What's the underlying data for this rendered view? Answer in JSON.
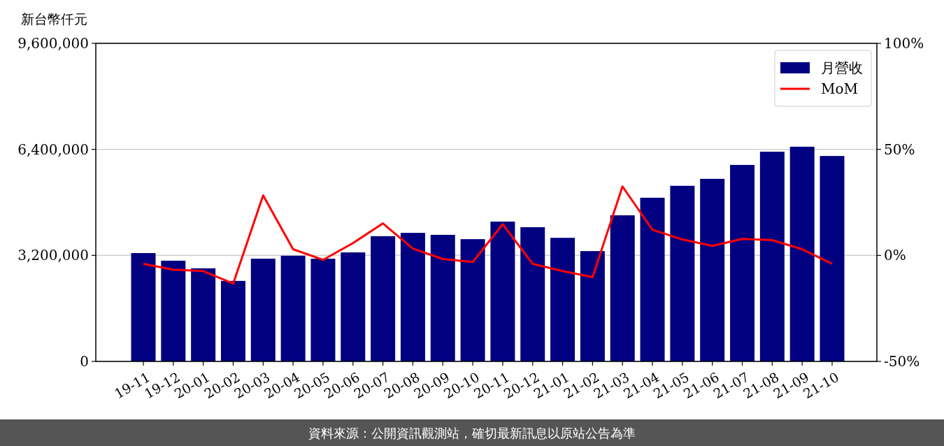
{
  "chart_data": {
    "type": "bar",
    "ylabel": "新台幣仟元",
    "categories": [
      "19-11",
      "19-12",
      "20-01",
      "20-02",
      "20-03",
      "20-04",
      "20-05",
      "20-06",
      "20-07",
      "20-08",
      "20-09",
      "20-10",
      "20-11",
      "20-12",
      "21-01",
      "21-02",
      "21-03",
      "21-04",
      "21-05",
      "21-06",
      "21-07",
      "21-08",
      "21-09",
      "21-10"
    ],
    "series": [
      {
        "name": "月營收",
        "color": "#000080",
        "values": [
          3270000,
          3040000,
          2810000,
          2430000,
          3100000,
          3190000,
          3100000,
          3290000,
          3780000,
          3880000,
          3820000,
          3690000,
          4220000,
          4050000,
          3730000,
          3330000,
          4410000,
          4940000,
          5300000,
          5510000,
          5930000,
          6330000,
          6480000,
          6200000
        ]
      },
      {
        "name": "MoM",
        "type": "line",
        "axis": "y2",
        "color": "#ff0000",
        "values": [
          -4,
          -6.7,
          -7.4,
          -13.3,
          28.3,
          2.9,
          -2.1,
          5.8,
          15.1,
          3.2,
          -1.7,
          -3.1,
          14.7,
          -4,
          -7.4,
          -10.3,
          32.5,
          12.1,
          7.5,
          4.5,
          7.8,
          7.2,
          2.9,
          -4
        ]
      }
    ],
    "ylim": [
      0,
      9600000
    ],
    "yticks": [
      0,
      {
        "value": 3200000,
        "label": "3,200,000"
      },
      {
        "value": 6400000,
        "label": "6,400,000"
      },
      {
        "value": 9600000,
        "label": "9,600,000"
      }
    ],
    "y2lim": [
      -50,
      100
    ],
    "y2ticks": [
      {
        "value": -50,
        "label": "-50%"
      },
      {
        "value": 0,
        "label": "0%"
      },
      {
        "value": 50,
        "label": "50%"
      },
      {
        "value": 100,
        "label": "100%"
      }
    ],
    "grid": "y",
    "legend": "top right",
    "annotations": [
      "資料來源：公開資訊觀測站，確切最新訊息以原站公告為準"
    ]
  }
}
